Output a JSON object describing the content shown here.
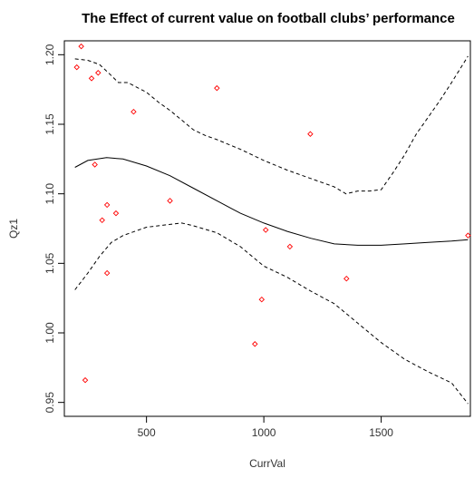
{
  "chart_data": {
    "type": "scatter",
    "title": "The Effect of current value on football clubs’ performance",
    "xlabel": "CurrVal",
    "ylabel": "Qz1",
    "xlim": [
      150,
      1880
    ],
    "ylim": [
      0.94,
      1.21
    ],
    "x_ticks": [
      500,
      1000,
      1500
    ],
    "x_tick_labels": [
      "500",
      "1000",
      "1500"
    ],
    "y_ticks": [
      0.95,
      1.0,
      1.05,
      1.1,
      1.15,
      1.2
    ],
    "y_tick_labels": [
      "0.95",
      "1.00",
      "1.05",
      "1.10",
      "1.15",
      "1.20"
    ],
    "grid": false,
    "point_color": "#ff0000",
    "line_color": "#000000",
    "points": [
      {
        "x": 203,
        "y": 1.191
      },
      {
        "x": 222,
        "y": 1.206
      },
      {
        "x": 266,
        "y": 1.183
      },
      {
        "x": 294,
        "y": 1.187
      },
      {
        "x": 280,
        "y": 1.121
      },
      {
        "x": 445,
        "y": 1.159
      },
      {
        "x": 800,
        "y": 1.176
      },
      {
        "x": 1198,
        "y": 1.143
      },
      {
        "x": 332,
        "y": 1.092
      },
      {
        "x": 370,
        "y": 1.086
      },
      {
        "x": 311,
        "y": 1.081
      },
      {
        "x": 600,
        "y": 1.095
      },
      {
        "x": 1008,
        "y": 1.074
      },
      {
        "x": 332,
        "y": 1.043
      },
      {
        "x": 1111,
        "y": 1.062
      },
      {
        "x": 1352,
        "y": 1.039
      },
      {
        "x": 991,
        "y": 1.024
      },
      {
        "x": 962,
        "y": 0.992
      },
      {
        "x": 239,
        "y": 0.966
      },
      {
        "x": 1870,
        "y": 1.07
      }
    ],
    "series": [
      {
        "style": "solid",
        "x": [
          195,
          250,
          330,
          400,
          500,
          600,
          700,
          800,
          900,
          1000,
          1100,
          1200,
          1300,
          1400,
          1500,
          1600,
          1700,
          1800,
          1870
        ],
        "y": [
          1.119,
          1.124,
          1.126,
          1.125,
          1.12,
          1.113,
          1.104,
          1.095,
          1.086,
          1.079,
          1.073,
          1.068,
          1.064,
          1.063,
          1.063,
          1.064,
          1.065,
          1.066,
          1.067
        ]
      },
      {
        "style": "dashed",
        "x": [
          195,
          250,
          300,
          350,
          380,
          420,
          500,
          550,
          600,
          650,
          700,
          750,
          800,
          900,
          1000,
          1100,
          1200,
          1300,
          1350,
          1400,
          1450,
          1500,
          1550,
          1600,
          1650,
          1700,
          1750,
          1800,
          1870
        ],
        "y": [
          1.197,
          1.196,
          1.193,
          1.185,
          1.18,
          1.18,
          1.173,
          1.166,
          1.16,
          1.153,
          1.146,
          1.142,
          1.139,
          1.132,
          1.124,
          1.117,
          1.111,
          1.105,
          1.1,
          1.102,
          1.102,
          1.103,
          1.115,
          1.128,
          1.143,
          1.155,
          1.167,
          1.18,
          1.199
        ]
      },
      {
        "style": "dashed",
        "x": [
          195,
          250,
          300,
          350,
          400,
          500,
          600,
          650,
          700,
          800,
          900,
          1000,
          1100,
          1200,
          1300,
          1350,
          1400,
          1500,
          1600,
          1700,
          1800,
          1870
        ],
        "y": [
          1.031,
          1.043,
          1.055,
          1.065,
          1.07,
          1.076,
          1.078,
          1.079,
          1.077,
          1.072,
          1.062,
          1.048,
          1.04,
          1.03,
          1.021,
          1.014,
          1.007,
          0.993,
          0.981,
          0.972,
          0.964,
          0.949
        ]
      }
    ]
  }
}
